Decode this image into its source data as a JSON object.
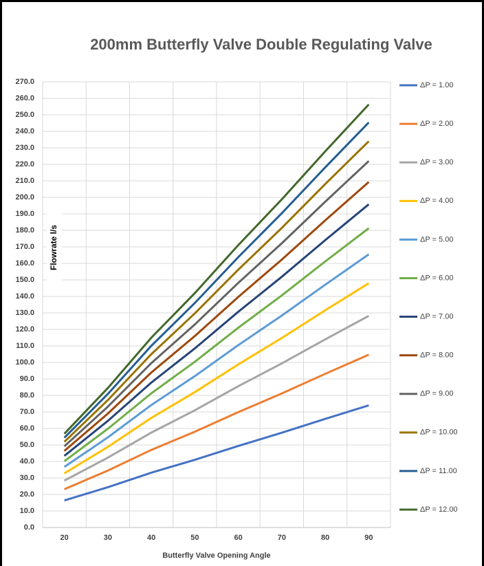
{
  "chart_data": {
    "type": "line",
    "title": "200mm Butterfly Valve Double Regulating Valve",
    "x_label": "Butterfly Valve Opening Angle",
    "y_label": "Flowrate l/s",
    "x": [
      20,
      30,
      40,
      50,
      60,
      70,
      80,
      90
    ],
    "xlim": [
      15,
      95
    ],
    "xticks": [
      20,
      30,
      40,
      50,
      60,
      70,
      80,
      90
    ],
    "ylim": [
      0,
      270
    ],
    "yticks": [
      {
        "value": 0,
        "label": "0.0"
      },
      {
        "value": 10,
        "label": "10.0"
      },
      {
        "value": 20,
        "label": "20.0"
      },
      {
        "value": 30,
        "label": "30.0"
      },
      {
        "value": 40,
        "label": "40.0"
      },
      {
        "value": 50,
        "label": "50.0"
      },
      {
        "value": 60,
        "label": "60.0"
      },
      {
        "value": 70,
        "label": "70.0"
      },
      {
        "value": 80,
        "label": "80.0"
      },
      {
        "value": 90,
        "label": "90.0"
      },
      {
        "value": 100,
        "label": "100.0"
      },
      {
        "value": 110,
        "label": "110.0"
      },
      {
        "value": 120,
        "label": "120.0"
      },
      {
        "value": 130,
        "label": "130.0"
      },
      {
        "value": 140,
        "label": "140.0"
      },
      {
        "value": 150,
        "label": "150.0"
      },
      {
        "value": 160,
        "label": "160.0"
      },
      {
        "value": 170,
        "label": "170.0"
      },
      {
        "value": 180,
        "label": "180.0"
      },
      {
        "value": 190,
        "label": "190.0"
      },
      {
        "value": 200,
        "label": "200.0"
      },
      {
        "value": 210,
        "label": "210.0"
      },
      {
        "value": 220,
        "label": "220.0"
      },
      {
        "value": 230,
        "label": "230.0"
      },
      {
        "value": 240,
        "label": "240.0"
      },
      {
        "value": 250,
        "label": "250.0"
      },
      {
        "value": 260,
        "label": "260.0"
      },
      {
        "value": 270,
        "label": "270.0"
      }
    ],
    "grid": true,
    "legend": "right",
    "series": [
      {
        "name": "ΔP = 1.00",
        "color": "#4472c4",
        "values": [
          16.4,
          24.4,
          33.2,
          41.0,
          49.4,
          57.4,
          65.8,
          74.0
        ]
      },
      {
        "name": "ΔP = 2.00",
        "color": "#ed7d31",
        "values": [
          23.2,
          34.5,
          47.0,
          58.0,
          69.9,
          81.2,
          93.1,
          104.7
        ]
      },
      {
        "name": "ΔP = 3.00",
        "color": "#a5a5a5",
        "values": [
          28.4,
          42.3,
          57.5,
          71.0,
          85.6,
          99.4,
          114.0,
          128.2
        ]
      },
      {
        "name": "ΔP = 4.00",
        "color": "#ffc000",
        "values": [
          32.8,
          48.8,
          66.4,
          82.0,
          98.8,
          114.8,
          131.6,
          148.0
        ]
      },
      {
        "name": "ΔP = 5.00",
        "color": "#5b9bd5",
        "values": [
          36.7,
          54.6,
          74.2,
          91.7,
          110.5,
          128.4,
          147.1,
          165.5
        ]
      },
      {
        "name": "ΔP = 6.00",
        "color": "#70ad47",
        "values": [
          40.2,
          59.8,
          81.3,
          100.4,
          121.0,
          140.6,
          161.2,
          181.3
        ]
      },
      {
        "name": "ΔP = 7.00",
        "color": "#264478",
        "values": [
          43.4,
          64.6,
          87.8,
          108.5,
          130.7,
          151.9,
          174.1,
          195.8
        ]
      },
      {
        "name": "ΔP = 8.00",
        "color": "#9e480e",
        "values": [
          46.4,
          69.0,
          93.9,
          116.0,
          139.7,
          162.3,
          186.1,
          209.3
        ]
      },
      {
        "name": "ΔP = 9.00",
        "color": "#636363",
        "values": [
          49.2,
          73.2,
          99.6,
          123.0,
          148.2,
          172.2,
          197.4,
          222.0
        ]
      },
      {
        "name": "ΔP = 10.00",
        "color": "#997300",
        "values": [
          51.9,
          77.2,
          105.0,
          129.7,
          156.2,
          181.5,
          208.1,
          234.0
        ]
      },
      {
        "name": "ΔP = 11.00",
        "color": "#255e91",
        "values": [
          54.4,
          80.9,
          110.1,
          136.0,
          163.8,
          190.4,
          218.2,
          245.4
        ]
      },
      {
        "name": "ΔP = 12.00",
        "color": "#43682b",
        "values": [
          56.8,
          84.5,
          115.0,
          142.0,
          171.1,
          198.8,
          227.9,
          256.3
        ]
      }
    ]
  }
}
